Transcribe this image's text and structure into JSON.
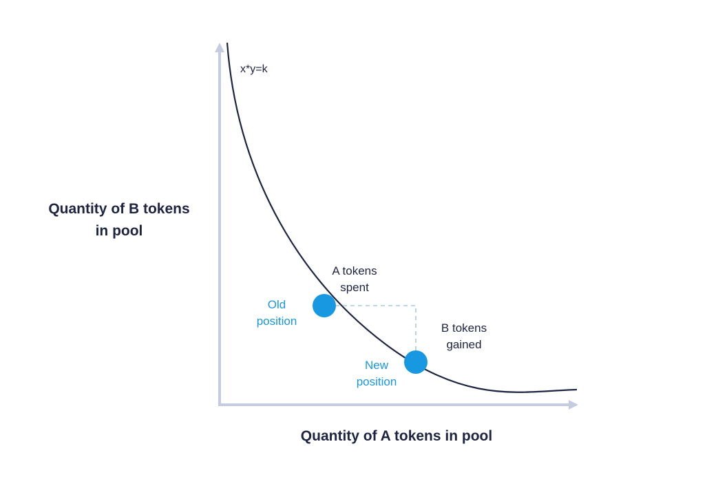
{
  "diagram": {
    "formula": "x*y=k",
    "y_axis_title": [
      "Quantity of B tokens",
      "in pool"
    ],
    "x_axis_title": "Quantity of A tokens in pool",
    "a_spent": [
      "A tokens",
      "spent"
    ],
    "b_gained": [
      "B tokens",
      "gained"
    ],
    "old_position": [
      "Old",
      "position"
    ],
    "new_position": [
      "New",
      "position"
    ],
    "colors": {
      "axis": "#c5cbe0",
      "curve": "#1d2340",
      "point": "#1798e0",
      "dashed": "#a9c8e6",
      "text_dark": "#1d2340",
      "text_blue": "#1798e0"
    }
  }
}
